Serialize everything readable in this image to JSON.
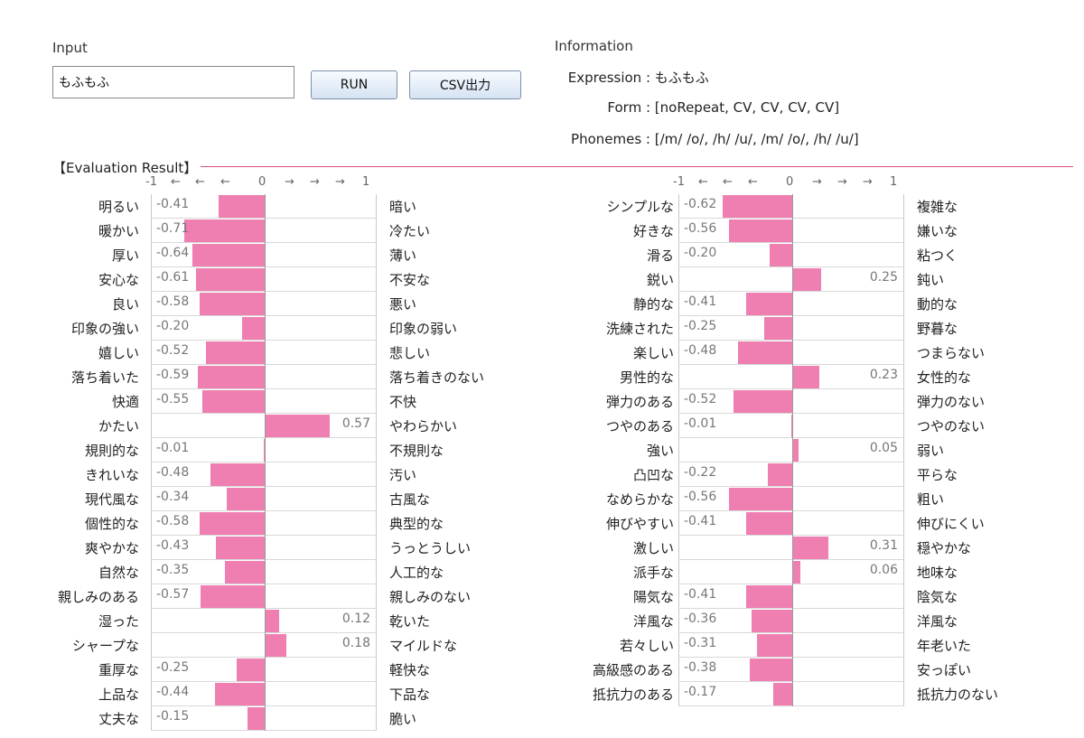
{
  "input": {
    "label": "Input",
    "value": "もふもふ",
    "run_label": "RUN",
    "csv_label": "CSV出力"
  },
  "information": {
    "title": "Information",
    "expression_key": "Expression :",
    "expression_value": "もふもふ",
    "form_key": "Form :",
    "form_value": "[noRepeat, CV, CV, CV, CV]",
    "phonemes_key": "Phonemes :",
    "phonemes_value": "[/m/ /o/, /h/ /u/, /m/ /o/, /h/ /u/]"
  },
  "evaluation": {
    "title": "【Evaluation Result】",
    "scale": [
      "-1",
      "←",
      "←",
      "←",
      "0",
      "→",
      "→",
      "→",
      "1"
    ],
    "bar_color": "#ee7fb0",
    "left_panel": [
      {
        "left": "明るい",
        "value": -0.41,
        "label": "-0.41",
        "right": "暗い"
      },
      {
        "left": "暖かい",
        "value": -0.71,
        "label": "-0.71",
        "right": "冷たい"
      },
      {
        "left": "厚い",
        "value": -0.64,
        "label": "-0.64",
        "right": "薄い"
      },
      {
        "left": "安心な",
        "value": -0.61,
        "label": "-0.61",
        "right": "不安な"
      },
      {
        "left": "良い",
        "value": -0.58,
        "label": "-0.58",
        "right": "悪い"
      },
      {
        "left": "印象の強い",
        "value": -0.2,
        "label": "-0.20",
        "right": "印象の弱い"
      },
      {
        "left": "嬉しい",
        "value": -0.52,
        "label": "-0.52",
        "right": "悲しい"
      },
      {
        "left": "落ち着いた",
        "value": -0.59,
        "label": "-0.59",
        "right": "落ち着きのない"
      },
      {
        "left": "快適",
        "value": -0.55,
        "label": "-0.55",
        "right": "不快"
      },
      {
        "left": "かたい",
        "value": 0.57,
        "label": "0.57",
        "right": "やわらかい"
      },
      {
        "left": "規則的な",
        "value": -0.01,
        "label": "-0.01",
        "right": "不規則な"
      },
      {
        "left": "きれいな",
        "value": -0.48,
        "label": "-0.48",
        "right": "汚い"
      },
      {
        "left": "現代風な",
        "value": -0.34,
        "label": "-0.34",
        "right": "古風な"
      },
      {
        "left": "個性的な",
        "value": -0.58,
        "label": "-0.58",
        "right": "典型的な"
      },
      {
        "left": "爽やかな",
        "value": -0.43,
        "label": "-0.43",
        "right": "うっとうしい"
      },
      {
        "left": "自然な",
        "value": -0.35,
        "label": "-0.35",
        "right": "人工的な"
      },
      {
        "left": "親しみのある",
        "value": -0.57,
        "label": "-0.57",
        "right": "親しみのない"
      },
      {
        "left": "湿った",
        "value": 0.12,
        "label": "0.12",
        "right": "乾いた"
      },
      {
        "left": "シャープな",
        "value": 0.18,
        "label": "0.18",
        "right": "マイルドな"
      },
      {
        "left": "重厚な",
        "value": -0.25,
        "label": "-0.25",
        "right": "軽快な"
      },
      {
        "left": "上品な",
        "value": -0.44,
        "label": "-0.44",
        "right": "下品な"
      },
      {
        "left": "丈夫な",
        "value": -0.15,
        "label": "-0.15",
        "right": "脆い"
      }
    ],
    "right_panel": [
      {
        "left": "シンプルな",
        "value": -0.62,
        "label": "-0.62",
        "right": "複雑な"
      },
      {
        "left": "好きな",
        "value": -0.56,
        "label": "-0.56",
        "right": "嫌いな"
      },
      {
        "left": "滑る",
        "value": -0.2,
        "label": "-0.20",
        "right": "粘つく"
      },
      {
        "left": "鋭い",
        "value": 0.25,
        "label": "0.25",
        "right": "鈍い"
      },
      {
        "left": "静的な",
        "value": -0.41,
        "label": "-0.41",
        "right": "動的な"
      },
      {
        "left": "洗練された",
        "value": -0.25,
        "label": "-0.25",
        "right": "野暮な"
      },
      {
        "left": "楽しい",
        "value": -0.48,
        "label": "-0.48",
        "right": "つまらない"
      },
      {
        "left": "男性的な",
        "value": 0.23,
        "label": "0.23",
        "right": "女性的な"
      },
      {
        "left": "弾力のある",
        "value": -0.52,
        "label": "-0.52",
        "right": "弾力のない"
      },
      {
        "left": "つやのある",
        "value": -0.01,
        "label": "-0.01",
        "right": "つやのない"
      },
      {
        "left": "強い",
        "value": 0.05,
        "label": "0.05",
        "right": "弱い"
      },
      {
        "left": "凸凹な",
        "value": -0.22,
        "label": "-0.22",
        "right": "平らな"
      },
      {
        "left": "なめらかな",
        "value": -0.56,
        "label": "-0.56",
        "right": "粗い"
      },
      {
        "left": "伸びやすい",
        "value": -0.41,
        "label": "-0.41",
        "right": "伸びにくい"
      },
      {
        "left": "激しい",
        "value": 0.31,
        "label": "0.31",
        "right": "穏やかな"
      },
      {
        "left": "派手な",
        "value": 0.06,
        "label": "0.06",
        "right": "地味な"
      },
      {
        "left": "陽気な",
        "value": -0.41,
        "label": "-0.41",
        "right": "陰気な"
      },
      {
        "left": "洋風な",
        "value": -0.36,
        "label": "-0.36",
        "right": "洋風な"
      },
      {
        "left": "若々しい",
        "value": -0.31,
        "label": "-0.31",
        "right": "年老いた"
      },
      {
        "left": "高級感のある",
        "value": -0.38,
        "label": "-0.38",
        "right": "安っぽい"
      },
      {
        "left": "抵抗力のある",
        "value": -0.17,
        "label": "-0.17",
        "right": "抵抗力のない"
      }
    ]
  }
}
